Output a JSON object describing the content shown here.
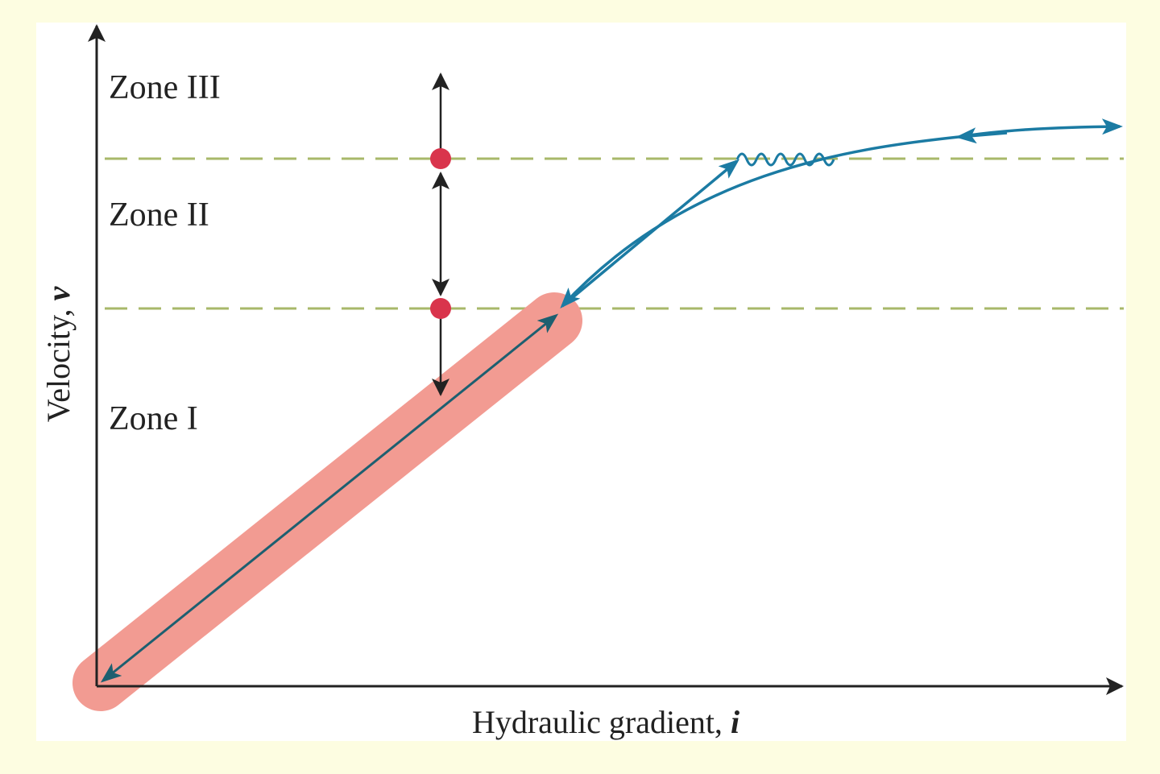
{
  "zones": [
    {
      "label": "Zone III"
    },
    {
      "label": "Zone II"
    },
    {
      "label": "Zone I"
    }
  ],
  "y_axis": {
    "label": "Velocity,",
    "symbol": "v"
  },
  "x_axis": {
    "label": "Hydraulic gradient,",
    "symbol": "i"
  }
}
